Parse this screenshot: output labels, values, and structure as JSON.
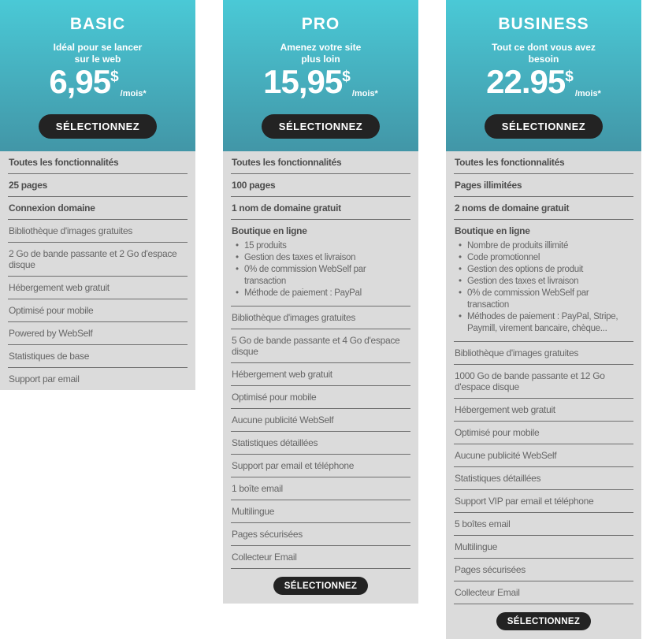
{
  "ui_colors": {
    "header_gradient_top": "#4ac9d6",
    "header_gradient_bottom": "#4296a7",
    "button_background": "#232323",
    "button_text": "#ffffff",
    "features_background": "#dbdbdb",
    "separator": "#6e6e6e",
    "feature_text_normal": "#666666",
    "feature_text_bold": "#4d4d4d",
    "header_text": "#ffffff",
    "page_background": "#ffffff"
  },
  "plans": [
    {
      "name": "BASIC",
      "tagline_line1": "Idéal pour se lancer",
      "tagline_line2": "sur le web",
      "price": "6,95",
      "currency": "$",
      "period": "/mois*",
      "select_label": "SÉLECTIONNEZ",
      "has_bottom_button": false,
      "features": [
        {
          "text": "Toutes les fonctionnalités",
          "bold": true
        },
        {
          "text": "25 pages",
          "bold": true
        },
        {
          "text": "Connexion domaine",
          "bold": true
        },
        {
          "text": "Bibliothèque d'images gratuites",
          "bold": false
        },
        {
          "text": "2 Go de bande passante et 2 Go d'espace disque",
          "bold": false
        },
        {
          "text": "Hébergement web gratuit",
          "bold": false
        },
        {
          "text": "Optimisé pour mobile",
          "bold": false
        },
        {
          "text": "Powered by WebSelf",
          "bold": false
        },
        {
          "text": "Statistiques de base",
          "bold": false
        },
        {
          "text": "Support par email",
          "bold": false
        }
      ]
    },
    {
      "name": "PRO",
      "tagline_line1": "Amenez votre site",
      "tagline_line2": "plus loin",
      "price": "15,95",
      "currency": "$",
      "period": "/mois*",
      "select_label": "SÉLECTIONNEZ",
      "has_bottom_button": true,
      "features": [
        {
          "text": "Toutes les fonctionnalités",
          "bold": true
        },
        {
          "text": "100 pages",
          "bold": true
        },
        {
          "text": "1 nom de domaine gratuit",
          "bold": true
        },
        {
          "text": "Boutique en ligne",
          "bold": true,
          "bullets": [
            "15 produits",
            "Gestion des taxes et livraison",
            "0% de commission WebSelf par transaction",
            "Méthode de paiement : PayPal"
          ]
        },
        {
          "text": "Bibliothèque d'images gratuites",
          "bold": false
        },
        {
          "text": "5 Go de bande passante et 4 Go d'espace disque",
          "bold": false
        },
        {
          "text": "Hébergement web gratuit",
          "bold": false
        },
        {
          "text": "Optimisé pour mobile",
          "bold": false
        },
        {
          "text": "Aucune publicité WebSelf",
          "bold": false
        },
        {
          "text": "Statistiques détaillées",
          "bold": false
        },
        {
          "text": "Support par email et téléphone",
          "bold": false
        },
        {
          "text": "1 boîte email",
          "bold": false
        },
        {
          "text": "Multilingue",
          "bold": false
        },
        {
          "text": "Pages sécurisées",
          "bold": false
        },
        {
          "text": "Collecteur Email",
          "bold": false
        }
      ]
    },
    {
      "name": "BUSINESS",
      "tagline_line1": "Tout ce dont vous avez",
      "tagline_line2": "besoin",
      "price": "22.95",
      "currency": "$",
      "period": "/mois*",
      "select_label": "SÉLECTIONNEZ",
      "has_bottom_button": true,
      "features": [
        {
          "text": "Toutes les fonctionnalités",
          "bold": true
        },
        {
          "text": "Pages illimitées",
          "bold": true
        },
        {
          "text": "2 noms de domaine gratuit",
          "bold": true
        },
        {
          "text": "Boutique en ligne",
          "bold": true,
          "bullets": [
            "Nombre de produits illimité",
            "Code promotionnel",
            "Gestion des options de produit",
            "Gestion des taxes et livraison",
            "0% de commission WebSelf par transaction",
            "Méthodes de paiement : PayPal, Stripe, Paymill, virement bancaire, chèque..."
          ]
        },
        {
          "text": "Bibliothèque d'images gratuites",
          "bold": false
        },
        {
          "text": "1000 Go de bande passante et 12 Go d'espace disque",
          "bold": false
        },
        {
          "text": "Hébergement web gratuit",
          "bold": false
        },
        {
          "text": "Optimisé pour mobile",
          "bold": false
        },
        {
          "text": "Aucune publicité WebSelf",
          "bold": false
        },
        {
          "text": "Statistiques détaillées",
          "bold": false
        },
        {
          "text": "Support VIP par email et téléphone",
          "bold": false
        },
        {
          "text": "5 boîtes email",
          "bold": false
        },
        {
          "text": "Multilingue",
          "bold": false
        },
        {
          "text": "Pages sécurisées",
          "bold": false
        },
        {
          "text": "Collecteur Email",
          "bold": false
        }
      ]
    }
  ]
}
